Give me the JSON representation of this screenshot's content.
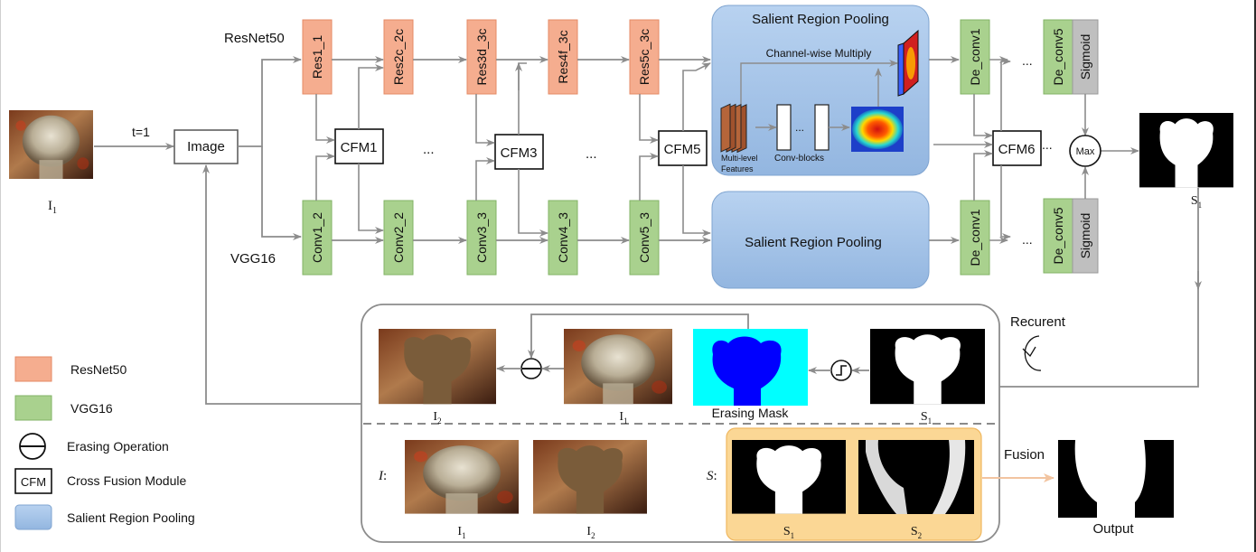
{
  "input_label": "I",
  "input_sub": "1",
  "time_label": "t=1",
  "image_node": "Image",
  "resnet_title": "ResNet50",
  "vgg_title": "VGG16",
  "resnet_blocks": [
    "Res1_1",
    "Res2c_2c",
    "Res3d_3c",
    "Res4f_3c",
    "Res5c_3c"
  ],
  "vgg_blocks": [
    "Conv1_2",
    "Conv2_2",
    "Conv3_3",
    "Conv4_3",
    "Conv5_3"
  ],
  "cfm_blocks": [
    "CFM1",
    "CFM3",
    "CFM5",
    "CFM6"
  ],
  "dots": "...",
  "srp": {
    "title": "Salient Region Pooling",
    "channel_multiply": "Channel-wise Multiply",
    "multi_level_1": "Multi-level",
    "multi_level_2": "Features",
    "conv_blocks": "Conv-blocks",
    "lower_title": "Salient Region Pooling"
  },
  "deconv_top": [
    "De_conv1",
    "De_conv5"
  ],
  "deconv_bottom": [
    "De_conv1",
    "De_conv5"
  ],
  "sigmoid": "Sigmoid",
  "max_label": "Max",
  "s1_label": "S",
  "s1_sub": "1",
  "recurrent_label": "Recurent",
  "recurrent_panel": {
    "i2": {
      "main": "I",
      "sub": "2"
    },
    "i1": {
      "main": "I",
      "sub": "1"
    },
    "erasing_mask": "Erasing Mask",
    "s1": {
      "main": "S",
      "sub": "1"
    }
  },
  "bottom_panel": {
    "i_prefix": "I",
    "colon": ":",
    "i1": {
      "main": "I",
      "sub": "1"
    },
    "i2": {
      "main": "I",
      "sub": "2"
    },
    "s_prefix": "S",
    "s1": {
      "main": "S",
      "sub": "1"
    },
    "s2": {
      "main": "S",
      "sub": "2"
    },
    "fusion": "Fusion",
    "output": "Output"
  },
  "legend": [
    {
      "key": "resnet",
      "label": "ResNet50",
      "color": "#f5ad8f"
    },
    {
      "key": "vgg",
      "label": "VGG16",
      "color": "#a9d18e"
    },
    {
      "key": "erase",
      "label": "Erasing Operation"
    },
    {
      "key": "cfm",
      "label": "Cross Fusion Module",
      "swatch_text": "CFM"
    },
    {
      "key": "srp",
      "label": "Salient Region Pooling",
      "color": "#a4c3e8"
    }
  ],
  "colors": {
    "resnet": "#f5ad8f",
    "vgg": "#a9d18e",
    "srp": "#a4c3e8",
    "sigmoid": "#bfbfbf",
    "arrow": "#8c8c8c",
    "fusion_arrow": "#f2c4a0",
    "s_panel": "#fbd795",
    "mask_bg": "#00ffff",
    "mask_fg": "#0000ff",
    "erased": "#7a5c3a"
  }
}
